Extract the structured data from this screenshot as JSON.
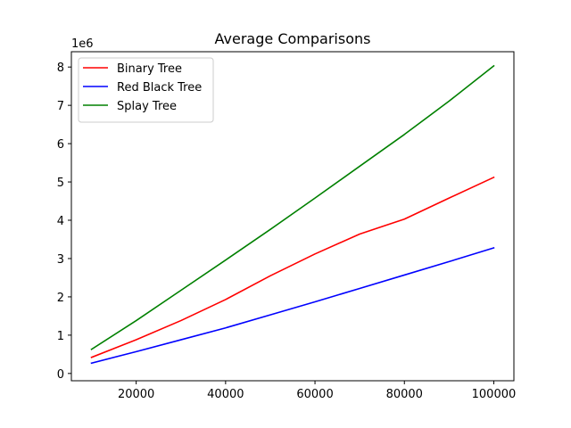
{
  "chart_data": {
    "type": "line",
    "title": "Average Comparisons",
    "xlabel": "",
    "ylabel": "",
    "y_scale_label": "1e6",
    "x": [
      10000,
      20000,
      30000,
      40000,
      50000,
      60000,
      70000,
      80000,
      90000,
      100000
    ],
    "xlim": [
      5500,
      104500
    ],
    "ylim": [
      -0.19,
      8.4
    ],
    "x_ticks": [
      20000,
      40000,
      60000,
      80000,
      100000
    ],
    "y_ticks": [
      0,
      1,
      2,
      3,
      4,
      5,
      6,
      7,
      8
    ],
    "grid": false,
    "legend_position": "upper-left",
    "series": [
      {
        "name": "Binary Tree",
        "color": "#ff0000",
        "values": [
          0.42,
          0.88,
          1.38,
          1.93,
          2.55,
          3.12,
          3.64,
          4.03,
          4.58,
          5.12
        ]
      },
      {
        "name": "Red Black Tree",
        "color": "#0000ff",
        "values": [
          0.27,
          0.57,
          0.88,
          1.19,
          1.53,
          1.87,
          2.22,
          2.57,
          2.92,
          3.28
        ]
      },
      {
        "name": "Splay Tree",
        "color": "#008000",
        "values": [
          0.63,
          1.38,
          2.17,
          2.96,
          3.76,
          4.58,
          5.41,
          6.24,
          7.11,
          8.03
        ]
      }
    ]
  }
}
